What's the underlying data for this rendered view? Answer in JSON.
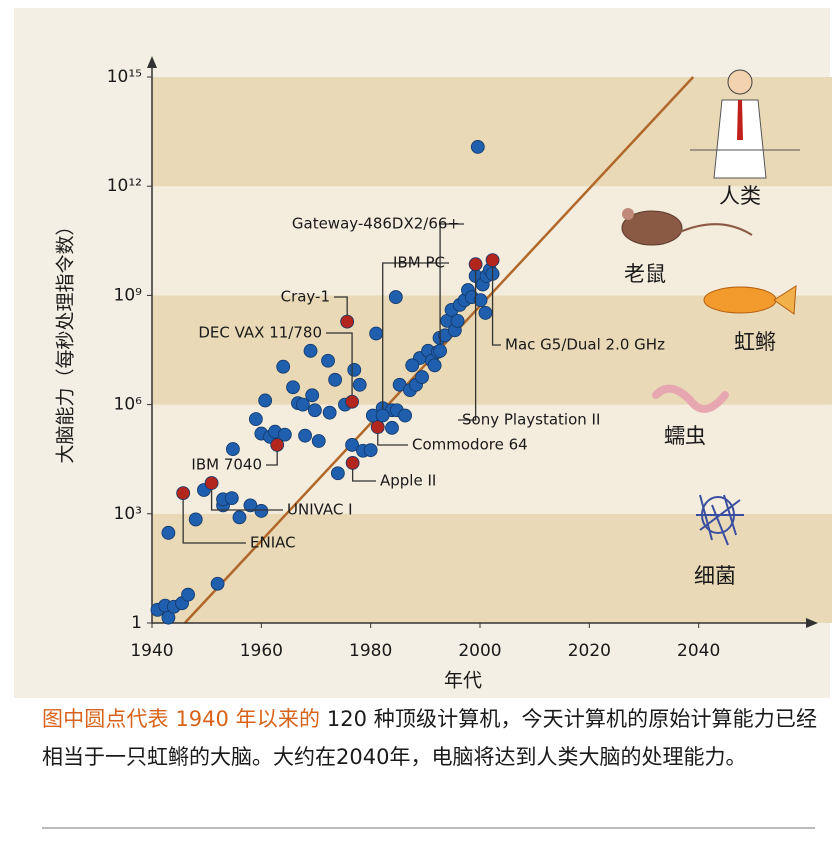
{
  "chart_data": {
    "type": "scatter",
    "y_label": "大脑能力（每秒处理指令数）",
    "x_label": "年代",
    "xlim": [
      1940,
      2060
    ],
    "xticks": [
      1940,
      1960,
      1980,
      2000,
      2020,
      2040
    ],
    "ylim": [
      1,
      1000000000000000.0
    ],
    "log_y": true,
    "yticks": [
      1,
      {
        "value": 1000,
        "label": "10³"
      },
      {
        "value": 1000000,
        "label": "10⁶"
      },
      {
        "value": 1000000000,
        "label": "10⁹"
      },
      {
        "value": 1000000000000,
        "label": "10¹²"
      },
      {
        "value": 1000000000000000,
        "label": "10¹⁵"
      }
    ],
    "series": [
      {
        "color": "#1f5fae",
        "x": [
          1941,
          1942.4,
          1943,
          1944,
          1945.5,
          1946.6,
          1943,
          1948,
          1949.5,
          1952,
          1953,
          1953,
          1954.6,
          1956,
          1958,
          1954.8,
          1960,
          1960,
          1959,
          1960.7,
          1961.6,
          1962.5,
          1964.3,
          1964,
          1965.8,
          1966.7,
          1967.6,
          1968,
          1969.8,
          1969,
          1969.3,
          1970.5,
          1972.2,
          1972.5,
          1973.5,
          1974,
          1975.3,
          1977,
          1976.6,
          1978,
          1978.6,
          1980,
          1981,
          1980.4,
          1982.2,
          1983.9,
          1984.6,
          1983.9,
          1984.8,
          1985.3,
          1986.3,
          1987.2,
          1988.3,
          1989,
          1989.4,
          1990.5,
          1991.2,
          1992.3,
          1992.6,
          1993.6,
          1994,
          1994.8,
          1995.4,
          1996.3,
          1997.2,
          1997.8,
          1998.5,
          1999.2,
          1999.6,
          2000.5,
          2001.2,
          2001.8,
          2002.3,
          2001,
          2000.1,
          1995.9,
          1991.7,
          1987.6
        ],
        "values": [
          2.3,
          3,
          1.4,
          2.8,
          3.5,
          6,
          300,
          700,
          4500,
          12,
          1700,
          2500,
          2700,
          800,
          1700,
          60000,
          1200,
          160000,
          400000,
          1300000,
          130000,
          180000,
          150000,
          11000000,
          3000000,
          1100000,
          1000000,
          140000,
          700000,
          30000000,
          1800000,
          100000,
          16000000,
          600000,
          4800000,
          13000,
          1000000,
          9000000,
          78000,
          3500000,
          54000,
          56000,
          90000000,
          500000,
          800000,
          230000,
          900000000,
          700000,
          700000,
          3500000,
          500000,
          2500000,
          3500000,
          19000000,
          5700000,
          30000000,
          16000000,
          28000000,
          68000000,
          80000000,
          200000000,
          400000000,
          110000000,
          550000000,
          740000000,
          1400000000,
          900000000,
          3400000000,
          12000000000000,
          2000000000,
          3400000000,
          5000000000,
          3900000000,
          330000000,
          740000000,
          200000000,
          12000000,
          12000000
        ]
      },
      {
        "color": "#b3261e",
        "labels": [
          "ENIAC",
          "UNIVAC I",
          "IBM 7040",
          "DEC VAX 11/780",
          "Cray-1",
          "Apple II",
          "Commodore 64",
          "Sony Playstation II",
          "Mac G5/Dual 2.0 GHz"
        ],
        "x": [
          1945.7,
          1950.9,
          1962.9,
          1976.6,
          1975.7,
          1976.7,
          1981.3,
          1999.2,
          2002.3
        ],
        "values": [
          3700,
          7000,
          78000,
          1200000,
          190000000,
          25000,
          240000,
          7200000000,
          9300000000
        ]
      },
      {
        "color": "#1f5fae",
        "labels": [
          "IBM PC",
          "Gateway-486DX2/66+"
        ],
        "x": [
          1982.2,
          1992.7
        ],
        "values": [
          500000,
          30000000
        ]
      }
    ],
    "trend_line": {
      "color": "#b0682a",
      "x": [
        1946,
        2039
      ],
      "values": [
        1,
        1000000000000000.0
      ]
    },
    "brain_levels": [
      "人类",
      "老鼠",
      "虹鳉",
      "蠕虫",
      "细菌"
    ],
    "caption_highlight": "图中圆点代表 1940 年以来的",
    "caption_rest": " 120 种顶级计算机，今天计算机的原始计算能力已经相当于一只虹鳉的大脑。大约在2040年，电脑将达到人类大脑的处理能力。"
  }
}
